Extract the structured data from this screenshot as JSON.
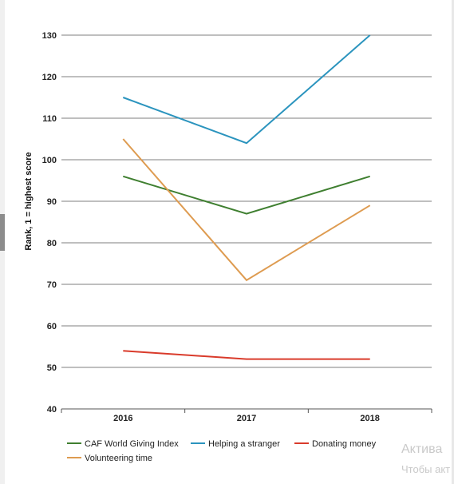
{
  "chart_data": {
    "type": "line",
    "title": "",
    "xlabel": "",
    "ylabel": "Rank, 1 = highest score",
    "categories": [
      "2016",
      "2017",
      "2018"
    ],
    "ylim": [
      40,
      130
    ],
    "yticks": [
      40,
      50,
      60,
      70,
      80,
      90,
      100,
      110,
      120,
      130
    ],
    "grid": true,
    "legend_position": "bottom",
    "series": [
      {
        "name": "CAF World Giving Index",
        "color": "#3f7f30",
        "values": [
          96,
          87,
          96
        ]
      },
      {
        "name": "Helping a stranger",
        "color": "#2b94be",
        "values": [
          115,
          104,
          130
        ]
      },
      {
        "name": "Donating money",
        "color": "#d93b2b",
        "values": [
          54,
          52,
          52
        ]
      },
      {
        "name": "Volunteering time",
        "color": "#de9b50",
        "values": [
          105,
          71,
          89
        ]
      }
    ]
  },
  "watermark": {
    "line1": "Актива",
    "line2": "Чтобы акт"
  }
}
